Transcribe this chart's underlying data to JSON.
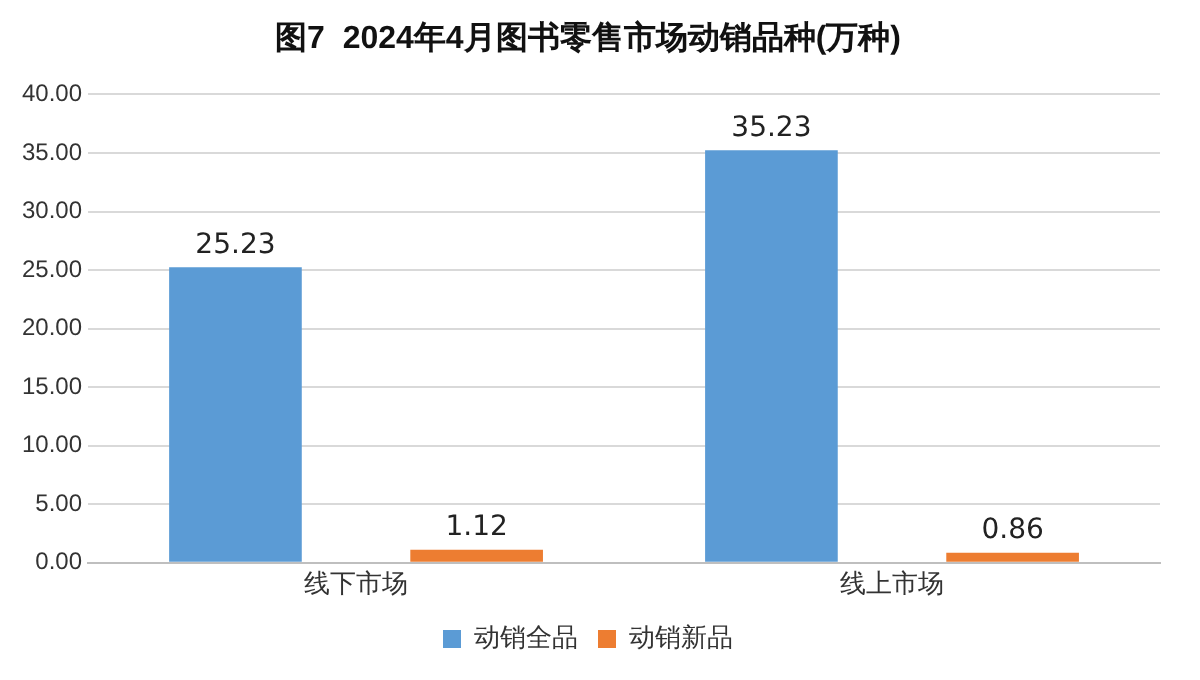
{
  "chart_data": {
    "type": "bar",
    "title": "图7  2024年4月图书零售市场动销品种(万种)",
    "categories": [
      "线下市场",
      "线上市场"
    ],
    "series": [
      {
        "name": "动销全品",
        "color": "#5b9bd5",
        "values": [
          25.23,
          35.23
        ]
      },
      {
        "name": "动销新品",
        "color": "#ed7d31",
        "values": [
          1.12,
          0.86
        ]
      }
    ],
    "ylim": [
      0,
      40
    ],
    "yticks": [
      {
        "value": 0,
        "label": "0.00"
      },
      {
        "value": 5,
        "label": "5.00"
      },
      {
        "value": 10,
        "label": "10.00"
      },
      {
        "value": 15,
        "label": "15.00"
      },
      {
        "value": 20,
        "label": "20.00"
      },
      {
        "value": 25,
        "label": "25.00"
      },
      {
        "value": 30,
        "label": "30.00"
      },
      {
        "value": 35,
        "label": "35.00"
      },
      {
        "value": 40,
        "label": "40.00"
      }
    ],
    "grid": "y",
    "legend": "bottom",
    "data_labels": true
  }
}
